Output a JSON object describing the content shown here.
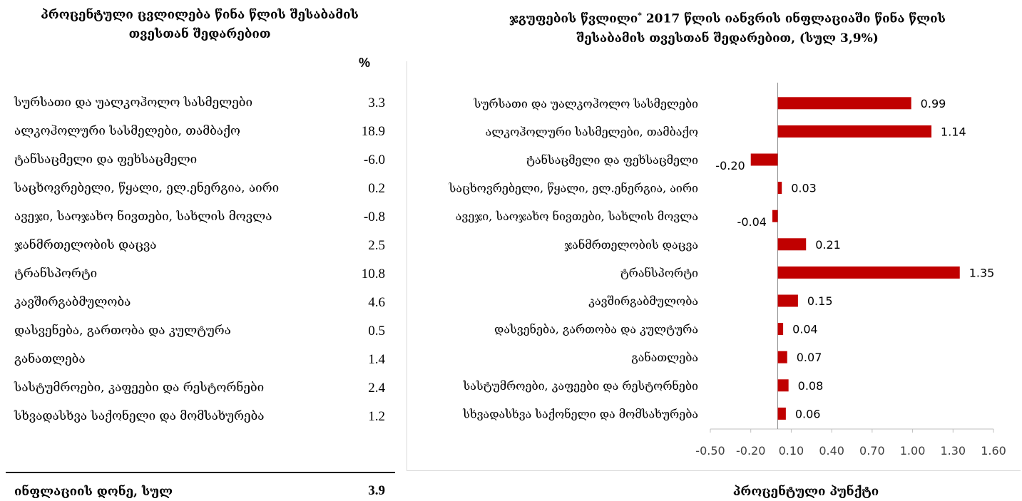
{
  "left_table": {
    "title_line1": "პროცენტული ცვლილება წინა წლის შესაბამის",
    "title_line2": "თვესთან შედარებით",
    "unit": "%",
    "rows": [
      {
        "label": "სურსათი და უალკოჰოლო სასმელები",
        "value": "3.3"
      },
      {
        "label": "ალკოჰოლური სასმელები, თამბაქო",
        "value": "18.9"
      },
      {
        "label": "ტანსაცმელი და ფეხსაცმელი",
        "value": "-6.0"
      },
      {
        "label": "საცხოვრებელი, წყალი, ელ.ენერგია, აირი",
        "value": "0.2"
      },
      {
        "label": "ავეჯი, საოჯახო ნივთები, სახლის მოვლა",
        "value": "-0.8"
      },
      {
        "label": "ჯანმრთელობის დაცვა",
        "value": "2.5"
      },
      {
        "label": "ტრანსპორტი",
        "value": "10.8"
      },
      {
        "label": "კავშირგაბმულობა",
        "value": "4.6"
      },
      {
        "label": "დასვენება, გართობა და კულტურა",
        "value": "0.5"
      },
      {
        "label": "განათლება",
        "value": "1.4"
      },
      {
        "label": "სასტუმროები, კაფეები და რესტორნები",
        "value": "2.4"
      },
      {
        "label": "სხვადასხვა საქონელი და მომსახურება",
        "value": "1.2"
      }
    ],
    "total_label": "ინფლაციის დონე, სულ",
    "total_value": "3.9"
  },
  "chart_title": {
    "line1_a": "ჯგუფების წვლილი",
    "line1_sup": "*",
    "line1_b": " 2017 წლის იანვრის ინფლაციაში წინა წლის",
    "line2": "შესაბამის თვესთან შედარებით, (სულ 3,9%)"
  },
  "chart_data": {
    "type": "bar",
    "orientation": "horizontal",
    "categories": [
      "სურსათი და უალკოჰოლო  სასმელები",
      "ალკოჰოლური  სასმელები, თამბაქო",
      "ტანსაცმელი და ფეხსაცმელი",
      "საცხოვრებელი, წყალი, ელ.ენერგია, აირი",
      "ავეჯი, საოჯახო ნივთები, სახლის მოვლა",
      "ჯანმრთელობის დაცვა",
      "ტრანსპორტი",
      "კავშირგაბმულობა",
      "დასვენება, გართობა და კულტურა",
      "განათლება",
      "სასტუმროები, კაფეები და რესტორნები",
      "სხვადასხვა საქონელი და მომსახურება"
    ],
    "values": [
      0.99,
      1.14,
      -0.2,
      0.03,
      -0.04,
      0.21,
      1.35,
      0.15,
      0.04,
      0.07,
      0.08,
      0.06
    ],
    "value_labels": [
      "0.99",
      "1.14",
      "-0.20",
      "0.03",
      "-0.04",
      "0.21",
      "1.35",
      "0.15",
      "0.04",
      "0.07",
      "0.08",
      "0.06"
    ],
    "xlim": [
      -0.5,
      1.6
    ],
    "xticks": [
      "-0.50",
      "-0.20",
      "0.10",
      "0.40",
      "0.70",
      "1.00",
      "1.30",
      "1.60"
    ],
    "xlabel": "პროცენტული პუნქტი",
    "bar_color": "#c00000",
    "grid": false
  }
}
